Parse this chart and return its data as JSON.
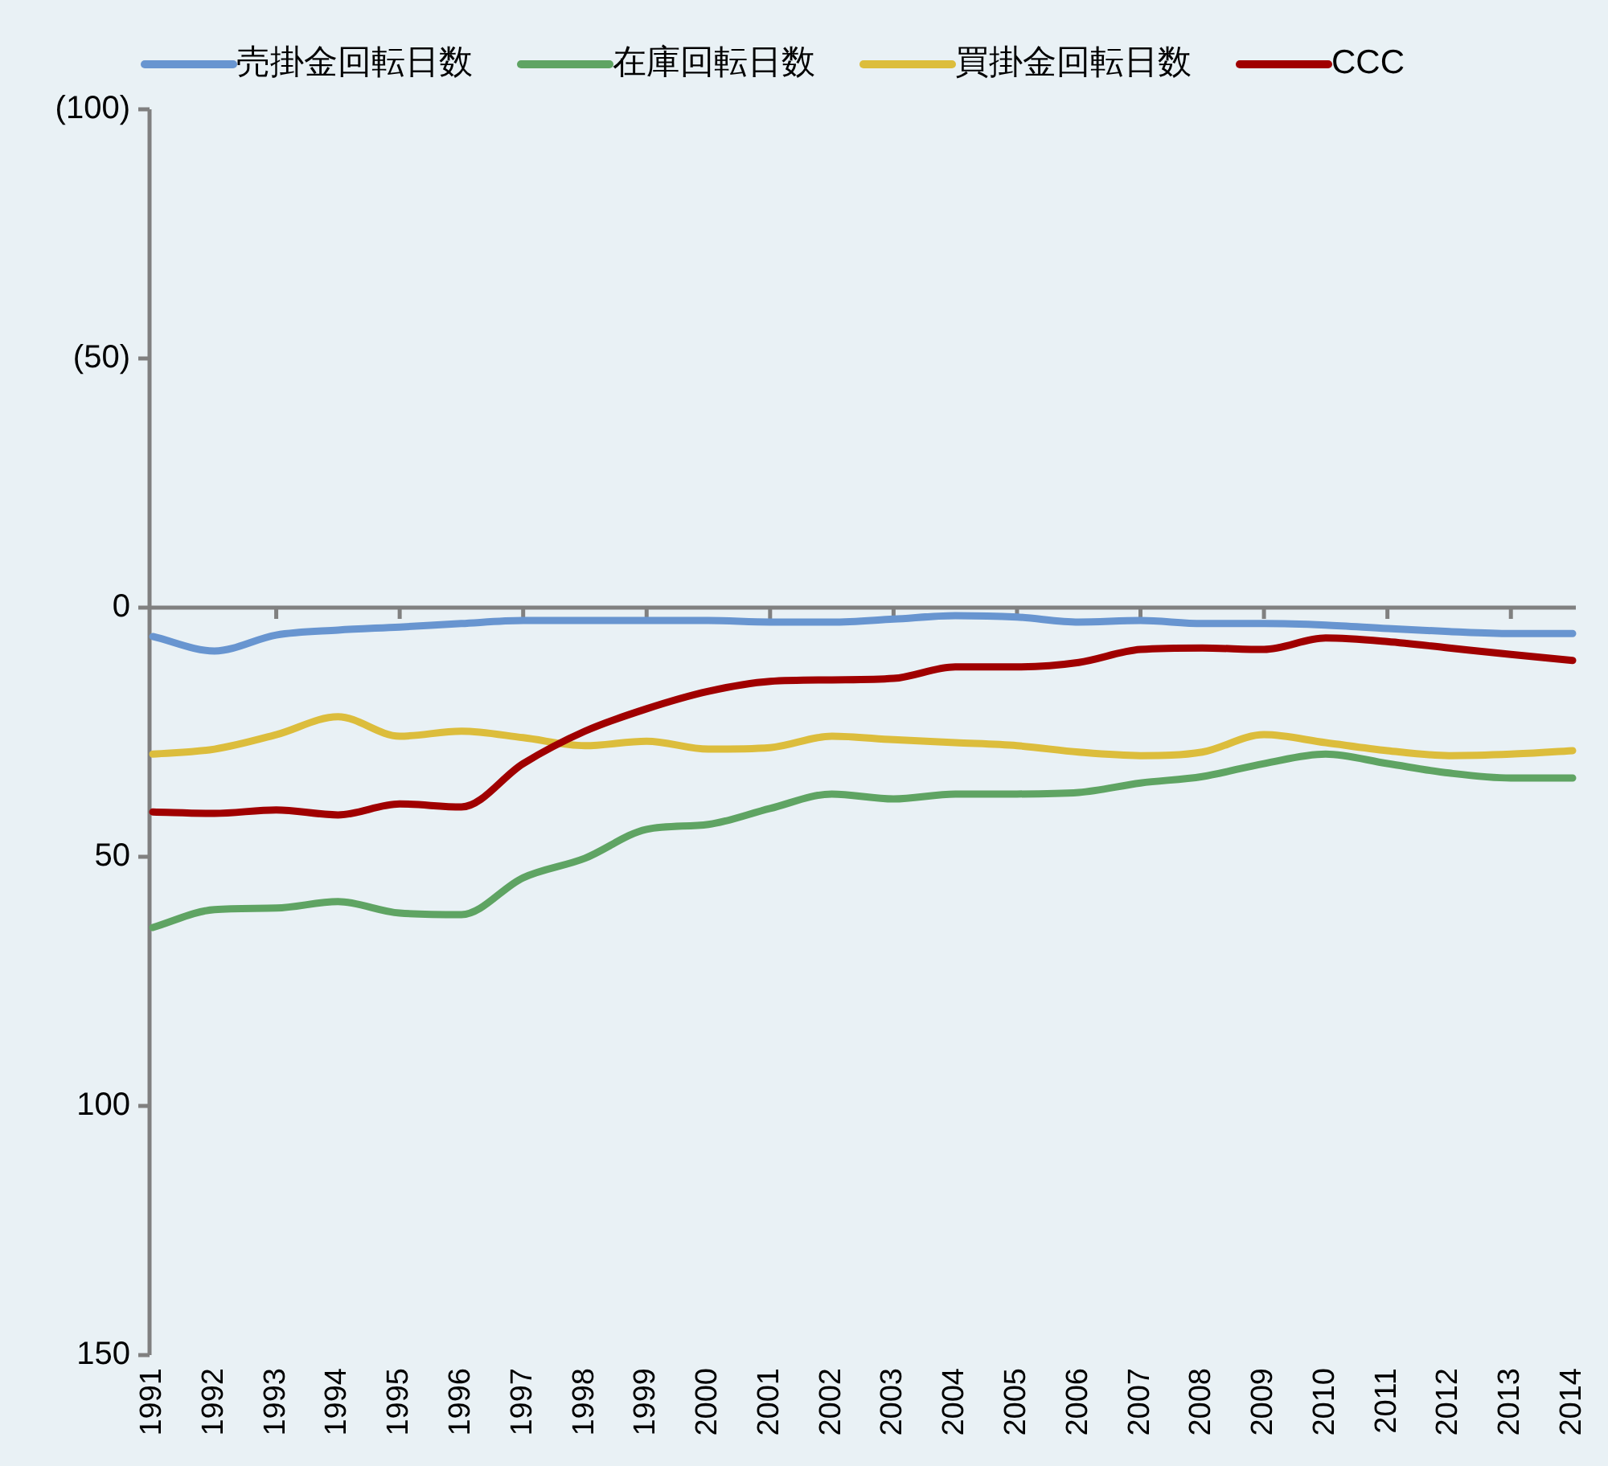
{
  "chart_data": {
    "type": "line",
    "categories": [
      "1991",
      "1992",
      "1993",
      "1994",
      "1995",
      "1996",
      "1997",
      "1998",
      "1999",
      "2000",
      "2001",
      "2002",
      "2003",
      "2004",
      "2005",
      "2006",
      "2007",
      "2008",
      "2009",
      "2010",
      "2011",
      "2012",
      "2013",
      "2014"
    ],
    "ylim": [
      150,
      -100
    ],
    "yticks": [
      {
        "value": -100,
        "label": "(100)"
      },
      {
        "value": -50,
        "label": "(50)"
      },
      0,
      50,
      100,
      150
    ],
    "legend": "top",
    "series": [
      {
        "name": "売掛金回転日数",
        "color": "#6895d0",
        "values": [
          5.8,
          8.7,
          5.5,
          4.5,
          3.9,
          3.2,
          2.6,
          2.6,
          2.6,
          2.6,
          2.9,
          2.9,
          2.3,
          1.6,
          1.9,
          2.9,
          2.6,
          3.2,
          3.2,
          3.5,
          4.2,
          4.8,
          5.2,
          5.2
        ]
      },
      {
        "name": "在庫回転日数",
        "color": "#5fa463",
        "values": [
          64.2,
          60.6,
          60.3,
          59,
          61.3,
          61.6,
          54.2,
          50.3,
          44.5,
          43.5,
          40.3,
          37.4,
          38.4,
          37.4,
          37.4,
          37.1,
          35.2,
          33.9,
          31.3,
          29.4,
          31.3,
          33.2,
          34.2,
          34.2
        ]
      },
      {
        "name": "買掛金回転日数",
        "color": "#dcbd3c",
        "values": [
          29.4,
          28.4,
          25.5,
          21.9,
          25.8,
          24.8,
          26.1,
          27.7,
          26.8,
          28.4,
          28.1,
          25.8,
          26.5,
          27.1,
          27.7,
          29,
          29.7,
          29,
          25.5,
          27.1,
          28.7,
          29.7,
          29.4,
          28.7
        ]
      },
      {
        "name": "CCC",
        "color": "#a00000",
        "values": [
          41,
          41.3,
          40.6,
          41.6,
          39.4,
          40,
          31.3,
          24.8,
          20.3,
          16.8,
          14.8,
          14.5,
          14.2,
          11.9,
          11.9,
          11,
          8.4,
          8.1,
          8.4,
          6.1,
          6.8,
          8.1,
          9.4,
          10.6
        ]
      }
    ]
  }
}
